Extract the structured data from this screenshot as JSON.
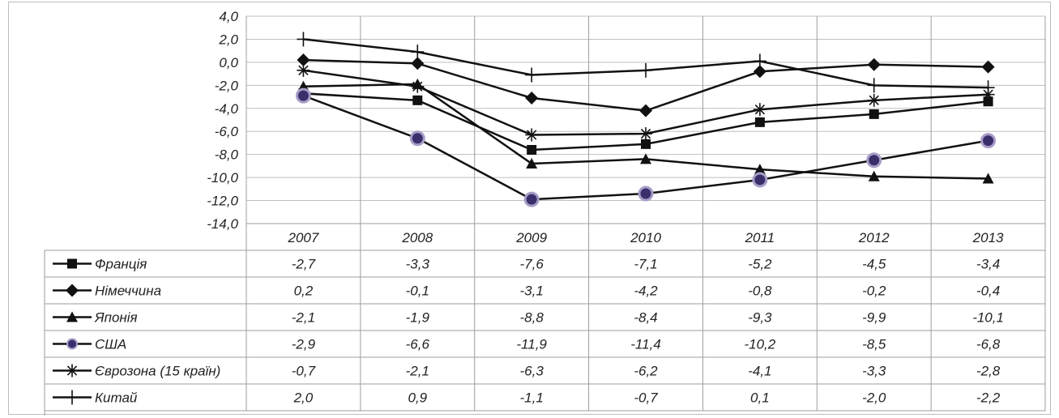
{
  "chart_data": {
    "type": "line",
    "categories": [
      "2007",
      "2008",
      "2009",
      "2010",
      "2011",
      "2012",
      "2013"
    ],
    "ylim": [
      -14,
      4
    ],
    "yticks": [
      "4,0",
      "2,0",
      "0,0",
      "-2,0",
      "-4,0",
      "-6,0",
      "-8,0",
      "-10,0",
      "-12,0",
      "-14,0"
    ],
    "grid": true,
    "legend": "data-table",
    "series": [
      {
        "name": "Франція",
        "marker": "square",
        "values": [
          -2.7,
          -3.3,
          -7.6,
          -7.1,
          -5.2,
          -4.5,
          -3.4
        ],
        "labels": [
          "-2,7",
          "-3,3",
          "-7,6",
          "-7,1",
          "-5,2",
          "-4,5",
          "-3,4"
        ]
      },
      {
        "name": "Німеччина",
        "marker": "diamond",
        "values": [
          0.2,
          -0.1,
          -3.1,
          -4.2,
          -0.8,
          -0.2,
          -0.4
        ],
        "labels": [
          "0,2",
          "-0,1",
          "-3,1",
          "-4,2",
          "-0,8",
          "-0,2",
          "-0,4"
        ]
      },
      {
        "name": "Японія",
        "marker": "triangle",
        "values": [
          -2.1,
          -1.9,
          -8.8,
          -8.4,
          -9.3,
          -9.9,
          -10.1
        ],
        "labels": [
          "-2,1",
          "-1,9",
          "-8,8",
          "-8,4",
          "-9,3",
          "-9,9",
          "-10,1"
        ]
      },
      {
        "name": "США",
        "marker": "circle",
        "values": [
          -2.9,
          -6.6,
          -11.9,
          -11.4,
          -10.2,
          -8.5,
          -6.8
        ],
        "labels": [
          "-2,9",
          "-6,6",
          "-11,9",
          "-11,4",
          "-10,2",
          "-8,5",
          "-6,8"
        ]
      },
      {
        "name": "Єврозона (15 країн)",
        "marker": "star",
        "values": [
          -0.7,
          -2.1,
          -6.3,
          -6.2,
          -4.1,
          -3.3,
          -2.8
        ],
        "labels": [
          "-0,7",
          "-2,1",
          "-6,3",
          "-6,2",
          "-4,1",
          "-3,3",
          "-2,8"
        ]
      },
      {
        "name": "Китай",
        "marker": "plus",
        "values": [
          2.0,
          0.9,
          -1.1,
          -0.7,
          0.1,
          -2.0,
          -2.2
        ],
        "labels": [
          "2,0",
          "0,9",
          "-1,1",
          "-0,7",
          "0,1",
          "-2,0",
          "-2,2"
        ]
      }
    ],
    "colors": {
      "line": "#111111",
      "usa_marker_fill": "#3b2f6b",
      "usa_marker_ring": "#a89cc8",
      "grid": "#bfbfbf"
    }
  }
}
